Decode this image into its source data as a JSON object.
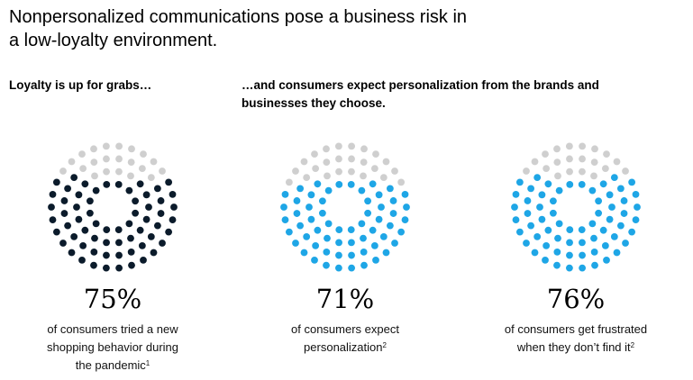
{
  "title_line1": "Nonpersonalized communications pose a business risk in",
  "title_line2": "a low-loyalty environment.",
  "subtitle_left": "Loyalty is up for grabs…",
  "subtitle_right_line1": "…and consumers expect personalization from the brands and",
  "subtitle_right_line2": "businesses they choose.",
  "colors": {
    "empty": "#cfcfcf",
    "dark": "#0b1b2b",
    "blue": "#1ea6e6"
  },
  "chart_data": [
    {
      "type": "dot-donut",
      "value": 75,
      "value_label": "75%",
      "fill_color": "#0b1b2b",
      "desc_lines": [
        "of consumers tried a new",
        "shopping behavior during",
        "the pandemic"
      ],
      "footnote": "1"
    },
    {
      "type": "dot-donut",
      "value": 71,
      "value_label": "71%",
      "fill_color": "#1ea6e6",
      "desc_lines": [
        "of consumers expect",
        "personalization"
      ],
      "footnote": "2"
    },
    {
      "type": "dot-donut",
      "value": 76,
      "value_label": "76%",
      "fill_color": "#1ea6e6",
      "desc_lines": [
        "of consumers get frustrated",
        "when they don’t find it"
      ],
      "footnote": "2"
    }
  ]
}
